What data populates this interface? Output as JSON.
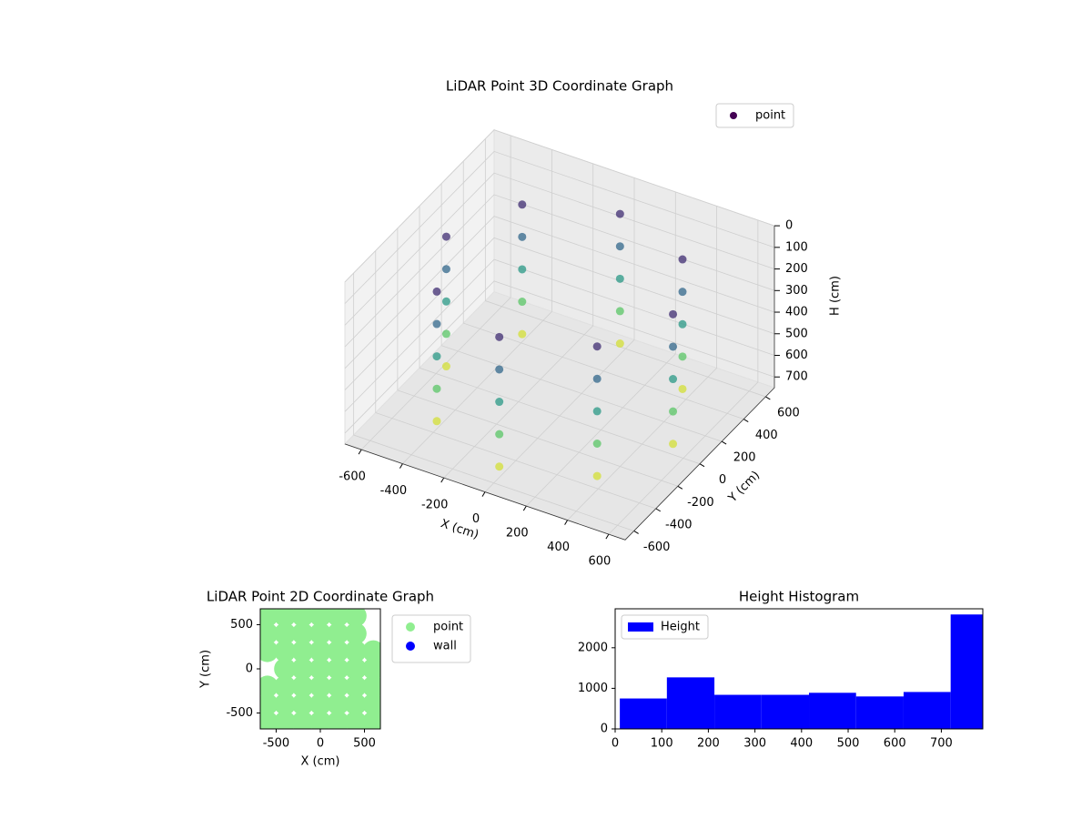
{
  "chart_data": [
    {
      "type": "scatter3d",
      "title": "LiDAR Point 3D Coordinate Graph",
      "xlabel": "X (cm)",
      "ylabel": "Y (cm)",
      "zlabel": "H (cm)",
      "xlim": [
        -680,
        680
      ],
      "ylim": [
        -680,
        680
      ],
      "zlim": [
        0,
        750
      ],
      "z_inverted": true,
      "xticks": [
        -600,
        -400,
        -200,
        0,
        200,
        400,
        600
      ],
      "yticks": [
        -600,
        -400,
        -200,
        0,
        200,
        400,
        600
      ],
      "zticks": [
        0,
        100,
        200,
        300,
        400,
        500,
        600,
        700
      ],
      "colormap": "viridis",
      "legend": "upper right",
      "series": [
        {
          "name": "point",
          "color": "#440154",
          "x": [
            550,
            389,
            0,
            -389,
            -550,
            -389,
            0,
            389,
            550,
            389,
            0,
            -389,
            -550,
            -389,
            0,
            389,
            550,
            389,
            0,
            -389,
            -550,
            -389,
            0,
            389,
            550,
            389,
            0,
            -389,
            -550,
            -389,
            0,
            389,
            550,
            389,
            0,
            -389,
            -550,
            -389,
            0,
            389
          ],
          "y": [
            0,
            389,
            550,
            389,
            0,
            -389,
            -550,
            -389,
            0,
            389,
            550,
            389,
            0,
            -389,
            -550,
            -389,
            0,
            389,
            550,
            389,
            0,
            -389,
            -550,
            -389,
            0,
            389,
            550,
            389,
            0,
            -389,
            -550,
            -389,
            0,
            389,
            550,
            389,
            0,
            -389,
            -550,
            -389
          ],
          "z": [
            100,
            100,
            100,
            100,
            100,
            100,
            100,
            100,
            250,
            250,
            250,
            250,
            250,
            250,
            250,
            250,
            400,
            400,
            400,
            400,
            400,
            400,
            400,
            400,
            550,
            550,
            550,
            550,
            550,
            550,
            550,
            550,
            700,
            700,
            700,
            700,
            700,
            700,
            700,
            700
          ]
        }
      ]
    },
    {
      "type": "scatter",
      "title": "LiDAR Point 2D Coordinate Graph",
      "xlabel": "X (cm)",
      "ylabel": "Y (cm)",
      "xlim": [
        -680,
        680
      ],
      "ylim": [
        -680,
        680
      ],
      "xticks": [
        -500,
        0,
        500
      ],
      "yticks": [
        -500,
        0,
        500
      ],
      "legend": "outside right",
      "series": [
        {
          "name": "point",
          "color": "#90ee90",
          "x": [
            -600,
            -400,
            -200,
            0,
            200,
            400,
            -600,
            -400,
            -200,
            0,
            200,
            400,
            -600,
            -400,
            -200,
            0,
            200,
            400,
            600,
            -400,
            -200,
            0,
            200,
            400,
            600,
            -600,
            -400,
            -200,
            0,
            200,
            400,
            600,
            -600,
            -400,
            -200,
            0,
            200,
            400,
            600,
            -600,
            -400,
            -200,
            0,
            200,
            400,
            600
          ],
          "y": [
            600,
            600,
            600,
            600,
            600,
            600,
            400,
            400,
            400,
            400,
            400,
            400,
            200,
            200,
            200,
            200,
            200,
            200,
            200,
            0,
            0,
            0,
            0,
            0,
            0,
            -200,
            -200,
            -200,
            -200,
            -200,
            -200,
            -200,
            -400,
            -400,
            -400,
            -400,
            -400,
            -400,
            -400,
            -600,
            -600,
            -600,
            -600,
            -600,
            -600,
            -600
          ]
        },
        {
          "name": "wall",
          "color": "#0000ff",
          "x": [],
          "y": []
        }
      ]
    },
    {
      "type": "histogram",
      "title": "Height Histogram",
      "name": "Height",
      "color": "#0000ff",
      "bins": [
        10,
        111,
        213,
        314,
        416,
        517,
        619,
        720,
        789
      ],
      "values": [
        750,
        1270,
        840,
        840,
        890,
        800,
        910,
        2820
      ],
      "xlim": [
        0,
        789
      ],
      "ylim": [
        0,
        2960
      ],
      "xticks": [
        0,
        100,
        200,
        300,
        400,
        500,
        600,
        700
      ],
      "yticks": [
        0,
        1000,
        2000
      ],
      "legend": "upper left"
    }
  ]
}
